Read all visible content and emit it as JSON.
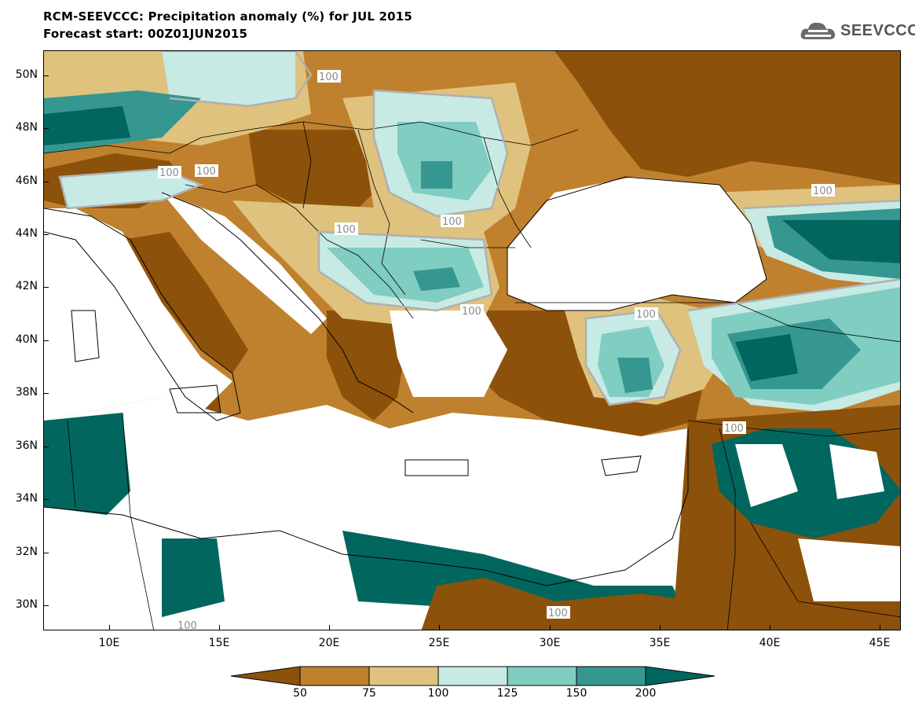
{
  "title": {
    "line1": "RCM-SEEVCCC: Precipitation anomaly (%) for JUL 2015",
    "line2": "Forecast start: 00Z01JUN2015"
  },
  "logo": {
    "text": "SEEVCCC",
    "icon": "cloud-logo-icon"
  },
  "axes": {
    "lat_labels": [
      "50N",
      "48N",
      "46N",
      "44N",
      "42N",
      "40N",
      "38N",
      "36N",
      "34N",
      "32N",
      "30N"
    ],
    "lon_labels": [
      "10E",
      "15E",
      "20E",
      "25E",
      "30E",
      "35E",
      "40E",
      "45E"
    ]
  },
  "colorbar": {
    "labels": [
      "50",
      "75",
      "100",
      "125",
      "150",
      "200"
    ],
    "colors": [
      "#8c510a",
      "#bf812d",
      "#dfc27d",
      "#c7eae5",
      "#80cdc1",
      "#35978f",
      "#01665e"
    ]
  },
  "contour_labels": [
    "100",
    "100",
    "100",
    "100",
    "100",
    "100",
    "100",
    "100",
    "100",
    "100",
    "100"
  ],
  "colors": {
    "very_dry": "#8c510a",
    "dry": "#bf812d",
    "slightly_dry": "#dfc27d",
    "slightly_wet": "#c7eae5",
    "wet": "#80cdc1",
    "very_wet": "#35978f",
    "extreme_wet": "#01665e",
    "contour_100": "#b0b0b0"
  }
}
